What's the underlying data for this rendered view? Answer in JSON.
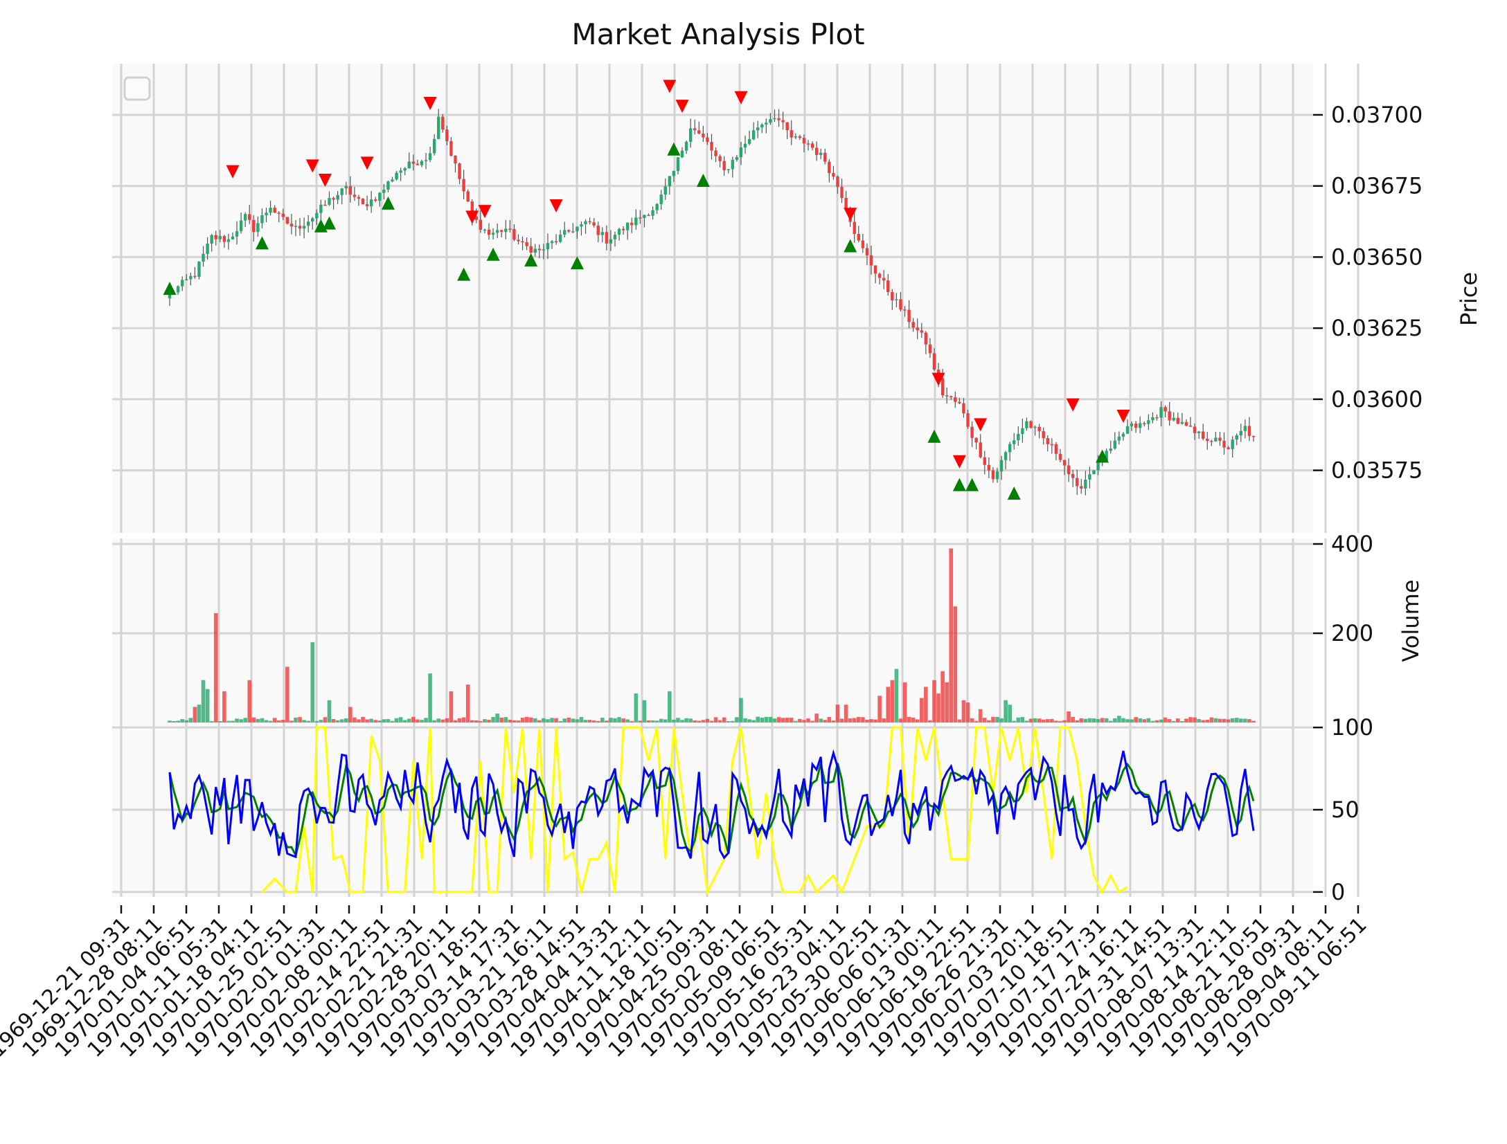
{
  "chart_data": {
    "type": "candlestick",
    "title": "Market Analysis Plot",
    "colors": {
      "up": "#26a96c",
      "down": "#f23b3b",
      "buy_marker": "#008000",
      "sell_marker": "#ff0000",
      "osc_yellow": "#ffff00",
      "osc_green": "#008000",
      "osc_blue": "#0000ff"
    },
    "x_tick_labels": [
      "1969-12-21 09:31",
      "1969-12-28 08:11",
      "1970-01-04 06:51",
      "1970-01-11 05:31",
      "1970-01-18 04:11",
      "1970-01-25 02:51",
      "1970-02-01 01:31",
      "1970-02-08 00:11",
      "1970-02-14 22:51",
      "1970-02-21 21:31",
      "1970-02-28 20:11",
      "1970-03-07 18:51",
      "1970-03-14 17:31",
      "1970-03-21 16:11",
      "1970-03-28 14:51",
      "1970-04-04 13:31",
      "1970-04-11 12:11",
      "1970-04-18 10:51",
      "1970-04-25 09:31",
      "1970-05-02 08:11",
      "1970-05-09 06:51",
      "1970-05-16 05:31",
      "1970-05-23 04:11",
      "1970-05-30 02:51",
      "1970-06-06 01:31",
      "1970-06-13 00:11",
      "1970-06-19 22:51",
      "1970-06-26 21:31",
      "1970-07-03 20:11",
      "1970-07-10 18:51",
      "1970-07-17 17:31",
      "1970-07-24 16:11",
      "1970-07-31 14:51",
      "1970-08-07 13:31",
      "1970-08-14 12:11",
      "1970-08-21 10:51",
      "1970-08-28 09:31",
      "1970-09-04 08:11",
      "1970-09-11 06:51"
    ],
    "price_panel": {
      "ylabel": "Price",
      "yticks": [
        0.03575,
        0.036,
        0.03625,
        0.0365,
        0.03675,
        0.037
      ],
      "ytick_labels": [
        "0.03575",
        "0.03600",
        "0.03625",
        "0.03650",
        "0.03675",
        "0.03700"
      ],
      "ylim": [
        0.03553,
        0.03718
      ],
      "legend": "top-left (empty)",
      "anchors_close": [
        [
          0,
          0.03637
        ],
        [
          6,
          0.03644
        ],
        [
          10,
          0.03657
        ],
        [
          14,
          0.03656
        ],
        [
          18,
          0.03664
        ],
        [
          20,
          0.0366
        ],
        [
          24,
          0.03668
        ],
        [
          26,
          0.03664
        ],
        [
          30,
          0.0366
        ],
        [
          34,
          0.03664
        ],
        [
          38,
          0.0367
        ],
        [
          42,
          0.03674
        ],
        [
          46,
          0.03668
        ],
        [
          50,
          0.03672
        ],
        [
          54,
          0.0368
        ],
        [
          58,
          0.03683
        ],
        [
          62,
          0.03686
        ],
        [
          64,
          0.037
        ],
        [
          68,
          0.03682
        ],
        [
          72,
          0.03664
        ],
        [
          76,
          0.03658
        ],
        [
          80,
          0.0366
        ],
        [
          84,
          0.03654
        ],
        [
          88,
          0.03652
        ],
        [
          92,
          0.03656
        ],
        [
          96,
          0.0366
        ],
        [
          100,
          0.03662
        ],
        [
          104,
          0.03656
        ],
        [
          108,
          0.0366
        ],
        [
          112,
          0.03664
        ],
        [
          116,
          0.03668
        ],
        [
          120,
          0.0368
        ],
        [
          124,
          0.03696
        ],
        [
          128,
          0.0369
        ],
        [
          132,
          0.0368
        ],
        [
          136,
          0.03688
        ],
        [
          140,
          0.03696
        ],
        [
          144,
          0.037
        ],
        [
          148,
          0.03692
        ],
        [
          152,
          0.0369
        ],
        [
          156,
          0.03684
        ],
        [
          160,
          0.03672
        ],
        [
          164,
          0.03655
        ],
        [
          168,
          0.03645
        ],
        [
          172,
          0.03636
        ],
        [
          176,
          0.03628
        ],
        [
          180,
          0.0362
        ],
        [
          184,
          0.03602
        ],
        [
          188,
          0.03598
        ],
        [
          192,
          0.03584
        ],
        [
          196,
          0.03572
        ],
        [
          200,
          0.03584
        ],
        [
          204,
          0.03592
        ],
        [
          208,
          0.03586
        ],
        [
          212,
          0.0358
        ],
        [
          216,
          0.03568
        ],
        [
          220,
          0.03576
        ],
        [
          224,
          0.03582
        ],
        [
          228,
          0.0359
        ],
        [
          232,
          0.03591
        ],
        [
          236,
          0.03596
        ],
        [
          240,
          0.03592
        ],
        [
          244,
          0.03588
        ],
        [
          248,
          0.03586
        ],
        [
          252,
          0.03583
        ],
        [
          256,
          0.0359
        ],
        [
          258,
          0.03586
        ]
      ],
      "sell_markers": [
        [
          15,
          0.0368
        ],
        [
          34,
          0.03682
        ],
        [
          37,
          0.03677
        ],
        [
          47,
          0.03683
        ],
        [
          62,
          0.03704
        ],
        [
          72,
          0.03664
        ],
        [
          75,
          0.03666
        ],
        [
          92,
          0.03668
        ],
        [
          119,
          0.0371
        ],
        [
          122,
          0.03703
        ],
        [
          136,
          0.03706
        ],
        [
          162,
          0.03665
        ],
        [
          183,
          0.03607
        ],
        [
          188,
          0.03578
        ],
        [
          193,
          0.03591
        ],
        [
          215,
          0.03598
        ],
        [
          227,
          0.03594
        ]
      ],
      "buy_markers": [
        [
          0,
          0.03639
        ],
        [
          22,
          0.03655
        ],
        [
          36,
          0.03661
        ],
        [
          38,
          0.03662
        ],
        [
          52,
          0.03669
        ],
        [
          70,
          0.03644
        ],
        [
          77,
          0.03651
        ],
        [
          86,
          0.03649
        ],
        [
          97,
          0.03648
        ],
        [
          120,
          0.03688
        ],
        [
          127,
          0.03677
        ],
        [
          162,
          0.03654
        ],
        [
          182,
          0.03587
        ],
        [
          188,
          0.0357
        ],
        [
          191,
          0.0357
        ],
        [
          201,
          0.03567
        ],
        [
          222,
          0.0358
        ]
      ]
    },
    "volume_panel": {
      "ylabel": "Volume",
      "yticks": [
        200,
        400
      ],
      "ytick_labels": [
        "200",
        "400"
      ],
      "ylim": [
        0,
        400
      ],
      "spikes": [
        [
          6,
          35
        ],
        [
          7,
          40
        ],
        [
          8,
          95
        ],
        [
          9,
          75
        ],
        [
          11,
          245
        ],
        [
          13,
          70
        ],
        [
          19,
          95
        ],
        [
          28,
          125
        ],
        [
          34,
          180
        ],
        [
          38,
          50
        ],
        [
          43,
          35
        ],
        [
          62,
          110
        ],
        [
          67,
          70
        ],
        [
          71,
          85
        ],
        [
          78,
          20
        ],
        [
          111,
          65
        ],
        [
          113,
          50
        ],
        [
          119,
          70
        ],
        [
          136,
          55
        ],
        [
          154,
          20
        ],
        [
          159,
          40
        ],
        [
          161,
          40
        ],
        [
          169,
          60
        ],
        [
          171,
          80
        ],
        [
          172,
          95
        ],
        [
          173,
          120
        ],
        [
          175,
          90
        ],
        [
          179,
          55
        ],
        [
          180,
          80
        ],
        [
          182,
          95
        ],
        [
          183,
          65
        ],
        [
          184,
          115
        ],
        [
          185,
          90
        ],
        [
          186,
          390
        ],
        [
          187,
          260
        ],
        [
          189,
          50
        ],
        [
          190,
          45
        ],
        [
          193,
          30
        ],
        [
          199,
          50
        ],
        [
          200,
          40
        ],
        [
          214,
          25
        ],
        [
          226,
          15
        ]
      ]
    },
    "oscillator_panel": {
      "yticks": [
        0,
        50,
        100
      ],
      "ytick_labels": [
        "0",
        "50",
        "100"
      ],
      "ylim": [
        -3,
        103
      ],
      "yellow_anchors": [
        [
          22,
          0
        ],
        [
          25,
          8
        ],
        [
          28,
          0
        ],
        [
          30,
          0
        ],
        [
          32,
          40
        ],
        [
          34,
          0
        ],
        [
          35,
          100
        ],
        [
          37,
          100
        ],
        [
          39,
          20
        ],
        [
          41,
          22
        ],
        [
          43,
          0
        ],
        [
          46,
          0
        ],
        [
          48,
          95
        ],
        [
          50,
          80
        ],
        [
          52,
          0
        ],
        [
          56,
          0
        ],
        [
          58,
          80
        ],
        [
          60,
          20
        ],
        [
          62,
          100
        ],
        [
          63,
          0
        ],
        [
          65,
          0
        ],
        [
          67,
          0
        ],
        [
          70,
          0
        ],
        [
          72,
          0
        ],
        [
          74,
          80
        ],
        [
          76,
          0
        ],
        [
          78,
          0
        ],
        [
          80,
          100
        ],
        [
          82,
          60
        ],
        [
          84,
          100
        ],
        [
          86,
          20
        ],
        [
          88,
          100
        ],
        [
          90,
          0
        ],
        [
          92,
          100
        ],
        [
          94,
          20
        ],
        [
          96,
          24
        ],
        [
          98,
          0
        ],
        [
          100,
          20
        ],
        [
          102,
          20
        ],
        [
          104,
          30
        ],
        [
          106,
          0
        ],
        [
          108,
          100
        ],
        [
          112,
          100
        ],
        [
          114,
          80
        ],
        [
          116,
          100
        ],
        [
          118,
          20
        ],
        [
          120,
          100
        ],
        [
          124,
          20
        ],
        [
          126,
          40
        ],
        [
          128,
          0
        ],
        [
          130,
          10
        ],
        [
          132,
          20
        ],
        [
          134,
          80
        ],
        [
          136,
          100
        ],
        [
          138,
          60
        ],
        [
          140,
          20
        ],
        [
          142,
          60
        ],
        [
          144,
          20
        ],
        [
          146,
          0
        ],
        [
          150,
          0
        ],
        [
          152,
          10
        ],
        [
          154,
          0
        ],
        [
          158,
          10
        ],
        [
          160,
          0
        ],
        [
          166,
          40
        ],
        [
          170,
          40
        ],
        [
          172,
          100
        ],
        [
          174,
          100
        ],
        [
          176,
          30
        ],
        [
          178,
          100
        ],
        [
          180,
          80
        ],
        [
          182,
          100
        ],
        [
          184,
          60
        ],
        [
          186,
          20
        ],
        [
          190,
          20
        ],
        [
          192,
          100
        ],
        [
          194,
          100
        ],
        [
          196,
          60
        ],
        [
          198,
          100
        ],
        [
          200,
          80
        ],
        [
          202,
          100
        ],
        [
          204,
          60
        ],
        [
          206,
          100
        ],
        [
          208,
          60
        ],
        [
          210,
          20
        ],
        [
          212,
          100
        ],
        [
          214,
          100
        ],
        [
          216,
          80
        ],
        [
          218,
          40
        ],
        [
          220,
          10
        ],
        [
          222,
          0
        ],
        [
          224,
          10
        ],
        [
          226,
          0
        ],
        [
          228,
          3
        ]
      ]
    }
  }
}
